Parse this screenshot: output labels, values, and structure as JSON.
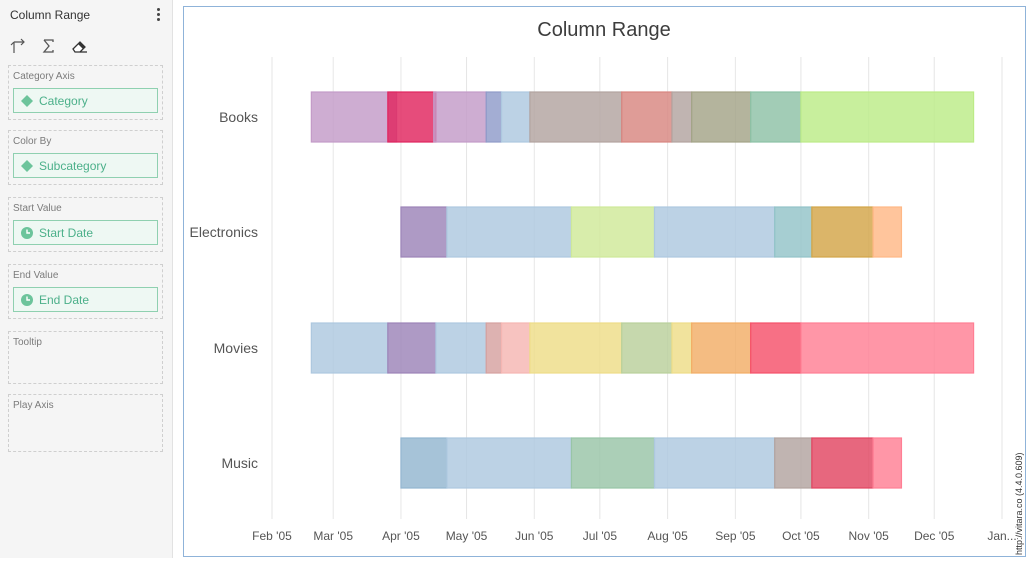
{
  "sidebar": {
    "title": "Column Range",
    "menu_icon": "more-vertical-icon",
    "tools": [
      "axis-arrows-icon",
      "sigma-icon",
      "eraser-icon"
    ],
    "wells": [
      {
        "label": "Category Axis",
        "field": "Category",
        "field_icon": "diamond-icon"
      },
      {
        "label": "Color By",
        "field": "Subcategory",
        "field_icon": "diamond-icon"
      },
      {
        "label": "Start Value",
        "field": "Start Date",
        "field_icon": "clock-icon"
      },
      {
        "label": "End Value",
        "field": "End Date",
        "field_icon": "clock-icon"
      },
      {
        "label": "Tooltip",
        "field": null
      },
      {
        "label": "Play Axis",
        "field": null
      }
    ]
  },
  "credit": "http://vitara.co  (4.4.0.609)",
  "chart_data": {
    "type": "column-range",
    "orientation": "horizontal",
    "title": "Column Range",
    "categories": [
      "Books",
      "Electronics",
      "Movies",
      "Music"
    ],
    "x_ticks": [
      "Feb '05",
      "Mar '05",
      "Apr '05",
      "May '05",
      "Jun '05",
      "Jul '05",
      "Aug '05",
      "Sep '05",
      "Oct '05",
      "Nov '05",
      "Dec '05",
      "Jan..."
    ],
    "x_tick_dates": [
      "2005-02-01",
      "2005-03-01",
      "2005-04-01",
      "2005-05-01",
      "2005-06-01",
      "2005-07-01",
      "2005-08-01",
      "2005-09-01",
      "2005-10-01",
      "2005-11-01",
      "2005-12-01",
      "2006-01-01"
    ],
    "xlim": [
      "2005-02-01",
      "2006-01-01"
    ],
    "grid": "vertical",
    "legend": "none",
    "ranges": [
      {
        "category": "Books",
        "start": "2005-02-19",
        "end": "2005-03-30",
        "color": "#c39bc8"
      },
      {
        "category": "Books",
        "start": "2005-03-26",
        "end": "2005-04-17",
        "color": "#e0245e"
      },
      {
        "category": "Books",
        "start": "2005-04-16",
        "end": "2005-05-10",
        "color": "#c39bc8"
      },
      {
        "category": "Books",
        "start": "2005-05-10",
        "end": "2005-05-17",
        "color": "#8f9bc9"
      },
      {
        "category": "Books",
        "start": "2005-05-17",
        "end": "2005-05-30",
        "color": "#adc8df"
      },
      {
        "category": "Books",
        "start": "2005-05-30",
        "end": "2005-07-11",
        "color": "#b2a4a0"
      },
      {
        "category": "Books",
        "start": "2005-07-11",
        "end": "2005-08-03",
        "color": "#d88680"
      },
      {
        "category": "Books",
        "start": "2005-08-03",
        "end": "2005-08-12",
        "color": "#b2a4a0"
      },
      {
        "category": "Books",
        "start": "2005-08-12",
        "end": "2005-09-08",
        "color": "#a3a487"
      },
      {
        "category": "Books",
        "start": "2005-09-08",
        "end": "2005-10-01",
        "color": "#8dc1a6"
      },
      {
        "category": "Books",
        "start": "2005-10-01",
        "end": "2005-12-19",
        "color": "#bceb87"
      },
      {
        "category": "Electronics",
        "start": "2005-04-01",
        "end": "2005-04-22",
        "color": "#9c84b8"
      },
      {
        "category": "Electronics",
        "start": "2005-04-22",
        "end": "2005-06-18",
        "color": "#adc8df"
      },
      {
        "category": "Electronics",
        "start": "2005-06-18",
        "end": "2005-07-26",
        "color": "#cfe999"
      },
      {
        "category": "Electronics",
        "start": "2005-07-26",
        "end": "2005-09-19",
        "color": "#adc8df"
      },
      {
        "category": "Electronics",
        "start": "2005-09-19",
        "end": "2005-10-06",
        "color": "#92c3c8"
      },
      {
        "category": "Electronics",
        "start": "2005-10-06",
        "end": "2005-11-03",
        "color": "#d3a548"
      },
      {
        "category": "Electronics",
        "start": "2005-11-03",
        "end": "2005-11-16",
        "color": "#ffb886"
      },
      {
        "category": "Movies",
        "start": "2005-02-19",
        "end": "2005-03-26",
        "color": "#adc8df"
      },
      {
        "category": "Movies",
        "start": "2005-03-26",
        "end": "2005-04-17",
        "color": "#9c84b8"
      },
      {
        "category": "Movies",
        "start": "2005-04-17",
        "end": "2005-05-10",
        "color": "#adc8df"
      },
      {
        "category": "Movies",
        "start": "2005-05-10",
        "end": "2005-05-17",
        "color": "#d5a1a0"
      },
      {
        "category": "Movies",
        "start": "2005-05-17",
        "end": "2005-05-30",
        "color": "#f5b6b2"
      },
      {
        "category": "Movies",
        "start": "2005-05-30",
        "end": "2005-07-11",
        "color": "#eedd88"
      },
      {
        "category": "Movies",
        "start": "2005-07-11",
        "end": "2005-08-03",
        "color": "#b9d09b"
      },
      {
        "category": "Movies",
        "start": "2005-08-03",
        "end": "2005-08-12",
        "color": "#eedd88"
      },
      {
        "category": "Movies",
        "start": "2005-08-12",
        "end": "2005-09-08",
        "color": "#f2ad66"
      },
      {
        "category": "Movies",
        "start": "2005-09-08",
        "end": "2005-10-01",
        "color": "#f5516a"
      },
      {
        "category": "Movies",
        "start": "2005-10-01",
        "end": "2005-12-19",
        "color": "#ff7f94"
      },
      {
        "category": "Music",
        "start": "2005-04-01",
        "end": "2005-04-22",
        "color": "#93b6d0"
      },
      {
        "category": "Music",
        "start": "2005-04-22",
        "end": "2005-06-18",
        "color": "#adc8df"
      },
      {
        "category": "Music",
        "start": "2005-06-18",
        "end": "2005-07-26",
        "color": "#98c5a7"
      },
      {
        "category": "Music",
        "start": "2005-07-26",
        "end": "2005-09-19",
        "color": "#adc8df"
      },
      {
        "category": "Music",
        "start": "2005-09-19",
        "end": "2005-10-06",
        "color": "#b2a4a0"
      },
      {
        "category": "Music",
        "start": "2005-10-06",
        "end": "2005-11-03",
        "color": "#e24561"
      },
      {
        "category": "Music",
        "start": "2005-11-03",
        "end": "2005-11-16",
        "color": "#ff7f94"
      }
    ]
  }
}
